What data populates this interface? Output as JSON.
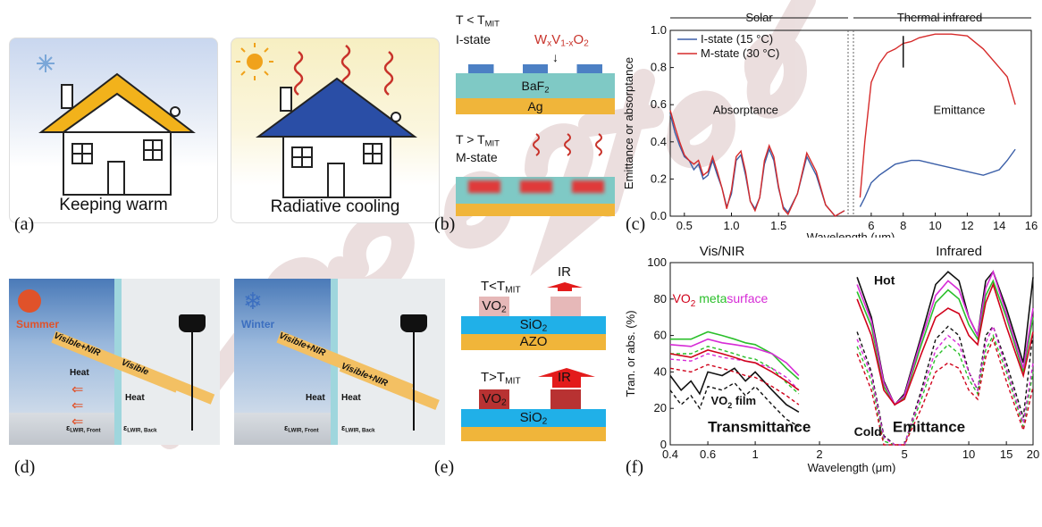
{
  "panel_labels": [
    "(a)",
    "(b)",
    "(c)",
    "(d)",
    "(e)",
    "(f)"
  ],
  "panel_a": {
    "caption": "Keeping warm"
  },
  "panel_a2": {
    "caption": "Radiative cooling"
  },
  "panel_b": {
    "i_cond": "T < T",
    "i_cond_sub": "MIT",
    "i_state": "I-state",
    "formula_w": "W",
    "formula_x": "x",
    "formula_v": "V",
    "formula_1x": "1-x",
    "formula_o": "O",
    "formula_2": "2",
    "baf": "BaF",
    "baf_sub": "2",
    "ag": "Ag",
    "m_cond": "T > T",
    "m_cond_sub": "MIT",
    "m_state": "M-state"
  },
  "panel_d": {
    "left": {
      "season": "Summer",
      "beam": "Visible+NIR",
      "beam2": "Visible",
      "heat1": "Heat",
      "heat2": "Heat",
      "eps_front": "ε",
      "eps_front_sub": "LWIR, Front",
      "eps_back": "ε",
      "eps_back_sub": "LWIR, Back"
    },
    "right": {
      "season": "Winter",
      "beam": "Visible+NIR",
      "beam2": "Visible+NIR",
      "heat1": "Heat",
      "heat2": "Heat",
      "eps_front": "ε",
      "eps_front_sub": "LWIR, Front",
      "eps_back": "ε",
      "eps_back_sub": "LWIR, Back"
    }
  },
  "panel_e": {
    "top_cond": "T<T",
    "top_cond_sub": "MIT",
    "ir": "IR",
    "vo2": "VO",
    "vo2_sub": "2",
    "sio2": "SiO",
    "sio2_sub": "2",
    "azo": "AZO",
    "bot_cond": "T>T",
    "bot_cond_sub": "MIT"
  },
  "colors": {
    "i_state": "#3b5fa8",
    "m_state": "#d62b2b",
    "hot": "#d0021b",
    "cold": "#1aa3d9",
    "metasurface_green": "#2bbf2b",
    "metasurface_magenta": "#d62bd6"
  },
  "chart_data": [
    {
      "type": "line",
      "panel": "(c)",
      "band_labels": [
        "Solar",
        "Thermal infrared"
      ],
      "xlabel": "Wavelength (μm)",
      "ylabel": "Emittance or absorptance",
      "x_ticks_left": [
        "0.5",
        "1.0",
        "1.5"
      ],
      "x_ticks_right": [
        "6",
        "8",
        "10",
        "12",
        "14",
        "16"
      ],
      "y_ticks": [
        "0.0",
        "0.2",
        "0.4",
        "0.6",
        "0.8",
        "1.0"
      ],
      "ylim": [
        0,
        1.0
      ],
      "annotations": [
        "Absorptance",
        "Emittance"
      ],
      "legend": [
        "I-state   (15 °C)",
        "M-state (30 °C)"
      ],
      "series": [
        {
          "name": "I-state   (15 °C)",
          "left": {
            "x": [
              0.35,
              0.4,
              0.45,
              0.5,
              0.55,
              0.6,
              0.65,
              0.7,
              0.75,
              0.8,
              0.85,
              0.9,
              0.95,
              1.0,
              1.05,
              1.1,
              1.15,
              1.2,
              1.25,
              1.3,
              1.35,
              1.4,
              1.45,
              1.5,
              1.55,
              1.6,
              1.7,
              1.8,
              1.9,
              2.0,
              2.1,
              2.2
            ],
            "y": [
              0.55,
              0.45,
              0.38,
              0.32,
              0.3,
              0.25,
              0.28,
              0.2,
              0.22,
              0.3,
              0.22,
              0.15,
              0.05,
              0.12,
              0.3,
              0.33,
              0.22,
              0.08,
              0.04,
              0.1,
              0.28,
              0.36,
              0.3,
              0.15,
              0.05,
              0.02,
              0.12,
              0.32,
              0.22,
              0.06,
              0.0,
              0.03
            ]
          },
          "right": {
            "x": [
              5.3,
              5.6,
              6,
              6.5,
              7,
              7.5,
              8,
              8.5,
              9,
              9.5,
              10,
              11,
              12,
              13,
              14,
              14.5,
              15
            ],
            "y": [
              0.05,
              0.1,
              0.18,
              0.22,
              0.25,
              0.28,
              0.29,
              0.3,
              0.3,
              0.29,
              0.28,
              0.26,
              0.24,
              0.22,
              0.25,
              0.3,
              0.36
            ]
          }
        },
        {
          "name": "M-state (30 °C)",
          "left": {
            "x": [
              0.35,
              0.4,
              0.45,
              0.5,
              0.55,
              0.6,
              0.65,
              0.7,
              0.75,
              0.8,
              0.85,
              0.9,
              0.95,
              1.0,
              1.05,
              1.1,
              1.15,
              1.2,
              1.25,
              1.3,
              1.35,
              1.4,
              1.45,
              1.5,
              1.55,
              1.6,
              1.7,
              1.8,
              1.9,
              2.0,
              2.1,
              2.2
            ],
            "y": [
              0.57,
              0.48,
              0.4,
              0.33,
              0.3,
              0.28,
              0.3,
              0.22,
              0.24,
              0.32,
              0.24,
              0.15,
              0.04,
              0.14,
              0.32,
              0.35,
              0.24,
              0.08,
              0.03,
              0.1,
              0.3,
              0.38,
              0.32,
              0.16,
              0.04,
              0.01,
              0.12,
              0.34,
              0.24,
              0.06,
              0.0,
              0.03
            ]
          },
          "right": {
            "x": [
              5.3,
              5.6,
              6,
              6.5,
              7,
              7.5,
              8,
              8.5,
              9,
              9.5,
              10,
              11,
              12,
              13,
              14,
              14.5,
              15
            ],
            "y": [
              0.1,
              0.4,
              0.72,
              0.82,
              0.88,
              0.9,
              0.93,
              0.94,
              0.96,
              0.97,
              0.98,
              0.98,
              0.97,
              0.9,
              0.8,
              0.75,
              0.6
            ]
          }
        }
      ]
    },
    {
      "type": "line",
      "panel": "(f)",
      "band_labels": [
        "Vis/NIR",
        "Infrared"
      ],
      "xlabel": "Wavelength (μm)",
      "ylabel": "Tran. or abs. (%)",
      "x_ticks": [
        "0.4",
        "0.6",
        "1",
        "2",
        "5",
        "10",
        "15",
        "20"
      ],
      "x_scale": "log",
      "y_ticks": [
        "0",
        "20",
        "40",
        "60",
        "80",
        "100"
      ],
      "ylim": [
        0,
        100
      ],
      "annotations": [
        "VO",
        "2",
        " meta",
        "surface",
        "Hot",
        "Cold",
        "VO",
        "2",
        " film",
        "Transmittance",
        "Emittance"
      ],
      "series": [
        {
          "name": "VO2 film",
          "vis": {
            "x": [
              0.4,
              0.45,
              0.5,
              0.55,
              0.6,
              0.7,
              0.8,
              0.9,
              1.0,
              1.2,
              1.4,
              1.6
            ],
            "y": [
              38,
              30,
              35,
              28,
              40,
              38,
              42,
              35,
              40,
              30,
              22,
              18
            ]
          },
          "ir": {
            "x": [
              3,
              3.5,
              4,
              4.5,
              5,
              6,
              7,
              8,
              9,
              10,
              11,
              12,
              13,
              15,
              18,
              20
            ],
            "y": [
              92,
              70,
              35,
              22,
              28,
              60,
              88,
              95,
              90,
              70,
              60,
              90,
              95,
              75,
              45,
              92
            ]
          }
        },
        {
          "name": "metasurface (green)",
          "vis": {
            "x": [
              0.4,
              0.5,
              0.6,
              0.7,
              0.8,
              0.9,
              1.0,
              1.2,
              1.4,
              1.6
            ],
            "y": [
              58,
              58,
              62,
              60,
              58,
              56,
              55,
              50,
              42,
              36
            ]
          },
          "ir": {
            "x": [
              3,
              3.5,
              4,
              4.5,
              5,
              6,
              7,
              8,
              9,
              10,
              11,
              12,
              13,
              15,
              18,
              20
            ],
            "y": [
              84,
              65,
              32,
              22,
              26,
              55,
              78,
              85,
              80,
              66,
              58,
              82,
              90,
              70,
              40,
              70
            ]
          }
        },
        {
          "name": "metasurface (magenta)",
          "vis": {
            "x": [
              0.4,
              0.5,
              0.6,
              0.7,
              0.8,
              0.9,
              1.0,
              1.2,
              1.4,
              1.6
            ],
            "y": [
              55,
              54,
              58,
              56,
              55,
              54,
              53,
              50,
              45,
              38
            ]
          },
          "ir": {
            "x": [
              3,
              3.5,
              4,
              4.5,
              5,
              6,
              7,
              8,
              9,
              10,
              11,
              12,
              13,
              15,
              18,
              20
            ],
            "y": [
              88,
              68,
              34,
              22,
              27,
              58,
              82,
              90,
              85,
              70,
              60,
              86,
              95,
              72,
              42,
              75
            ]
          }
        },
        {
          "name": "metasurface (red)",
          "vis": {
            "x": [
              0.4,
              0.5,
              0.6,
              0.7,
              0.8,
              0.9,
              1.0,
              1.2,
              1.4,
              1.6
            ],
            "y": [
              50,
              48,
              52,
              50,
              48,
              46,
              45,
              40,
              35,
              30
            ]
          },
          "ir": {
            "x": [
              3,
              3.5,
              4,
              4.5,
              5,
              6,
              7,
              8,
              9,
              10,
              11,
              12,
              13,
              15,
              18,
              20
            ],
            "y": [
              80,
              60,
              30,
              22,
              25,
              50,
              70,
              75,
              72,
              60,
              55,
              78,
              88,
              65,
              38,
              62
            ]
          }
        }
      ]
    }
  ]
}
